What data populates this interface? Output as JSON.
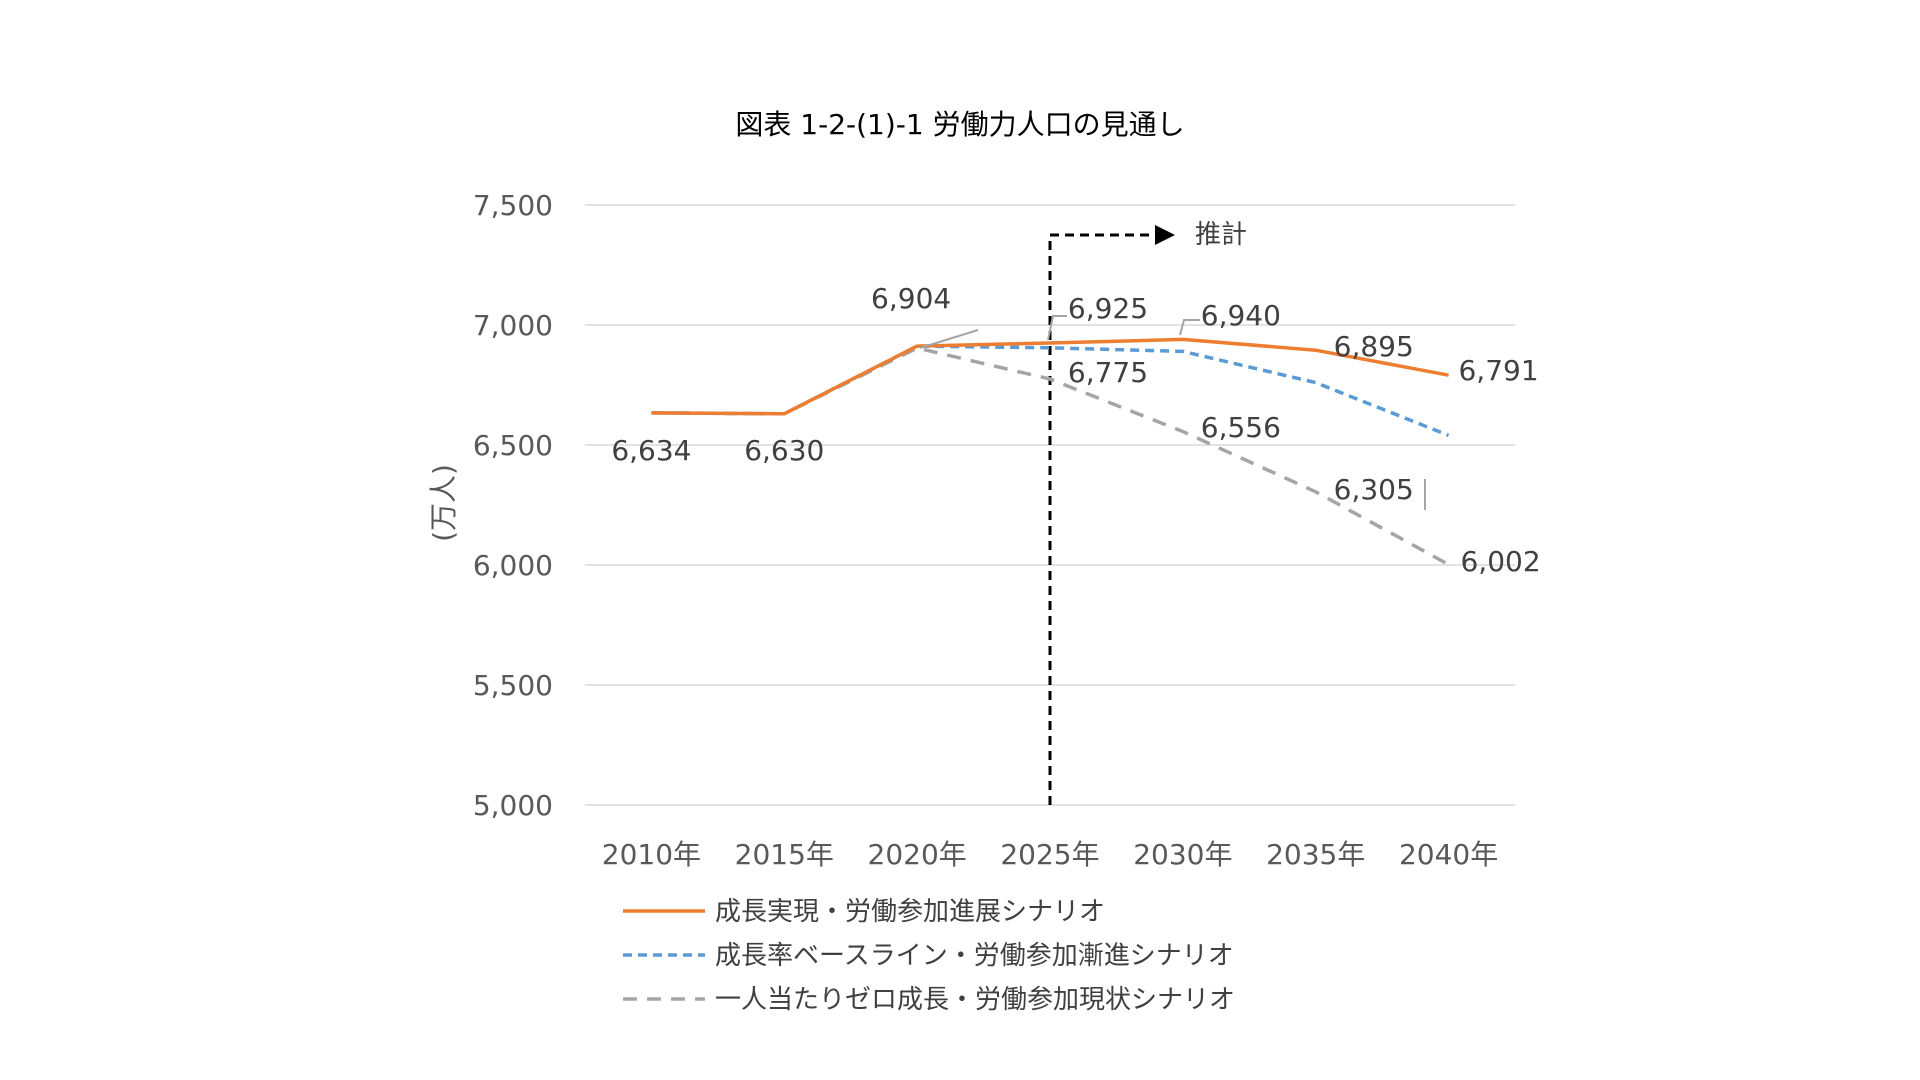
{
  "chart_data": {
    "type": "line",
    "title": "図表 1-2-(1)-1 労働力人口の見通し",
    "ylabel": "(万人)",
    "xlabel": "",
    "categories": [
      "2010年",
      "2015年",
      "2020年",
      "2025年",
      "2030年",
      "2035年",
      "2040年"
    ],
    "y_ticks": [
      "5,000",
      "5,500",
      "6,000",
      "6,500",
      "7,000",
      "7,500"
    ],
    "ylim": [
      5000,
      7500
    ],
    "grid": true,
    "legend_position": "bottom-left",
    "projection_label": "推計",
    "projection_start": "2025年",
    "series": [
      {
        "name": "成長実現・労働参加進展シナリオ",
        "color": "#ED7D31",
        "style": "solid",
        "values": [
          6634,
          6630,
          6912,
          6925,
          6940,
          6895,
          6791
        ]
      },
      {
        "name": "成長率ベースライン・労働参加漸進シナリオ",
        "color": "#5B9BD5",
        "style": "dashed",
        "values": [
          6634,
          6630,
          6912,
          6905,
          6890,
          6760,
          6540
        ]
      },
      {
        "name": "一人当たりゼロ成長・労働参加現状シナリオ",
        "color": "#A5A5A5",
        "style": "dashed-long",
        "values": [
          6634,
          6630,
          6904,
          6775,
          6556,
          6305,
          6002
        ]
      }
    ],
    "data_labels": [
      {
        "text": "6,634",
        "category": "2010年"
      },
      {
        "text": "6,630",
        "category": "2015年"
      },
      {
        "text": "6,904",
        "category": "2020年"
      },
      {
        "text": "6,925",
        "category": "2025年"
      },
      {
        "text": "6,775",
        "category": "2025年"
      },
      {
        "text": "6,940",
        "category": "2030年"
      },
      {
        "text": "6,556",
        "category": "2030年"
      },
      {
        "text": "6,895",
        "category": "2035年"
      },
      {
        "text": "6,305",
        "category": "2035年"
      },
      {
        "text": "6,791",
        "category": "2040年"
      },
      {
        "text": "6,002",
        "category": "2040年"
      }
    ]
  }
}
